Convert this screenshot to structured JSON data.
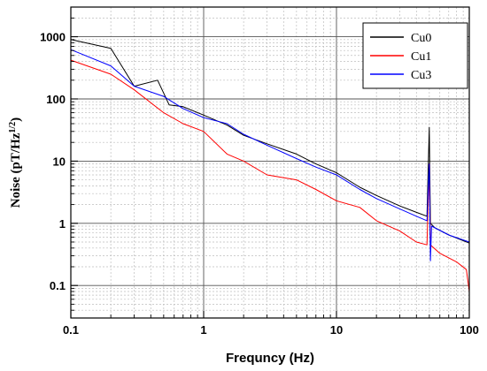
{
  "chart_data": {
    "type": "line",
    "xlabel": "Frequncy (Hz)",
    "ylabel": "Noise (pT/Hz",
    "ylabel_sup": "1/2",
    "ylabel_close": ")",
    "xscale": "log",
    "yscale": "log",
    "xlim": [
      0.1,
      100
    ],
    "ylim": [
      0.03,
      3000
    ],
    "x_ticks": [
      "0.1",
      "1",
      "10",
      "100"
    ],
    "y_ticks": [
      "0.1",
      "1",
      "10",
      "100",
      "1000"
    ],
    "grid": true,
    "legend_position": "top-right",
    "series": [
      {
        "name": "Cu0",
        "color": "#000000",
        "points": [
          [
            0.1,
            900
          ],
          [
            0.2,
            650
          ],
          [
            0.3,
            160
          ],
          [
            0.45,
            200
          ],
          [
            0.55,
            80
          ],
          [
            0.7,
            75
          ],
          [
            1.0,
            55
          ],
          [
            1.5,
            38
          ],
          [
            2.0,
            26
          ],
          [
            3.0,
            19
          ],
          [
            5.0,
            13
          ],
          [
            7.0,
            9
          ],
          [
            10.0,
            6.5
          ],
          [
            15.0,
            3.8
          ],
          [
            20.0,
            2.8
          ],
          [
            30.0,
            1.9
          ],
          [
            40.0,
            1.5
          ],
          [
            48.0,
            1.3
          ],
          [
            50.0,
            35
          ],
          [
            51.0,
            1.0
          ],
          [
            55.0,
            0.85
          ],
          [
            70.0,
            0.65
          ],
          [
            100.0,
            0.48
          ]
        ]
      },
      {
        "name": "Cu1",
        "color": "#ff0000",
        "points": [
          [
            0.1,
            420
          ],
          [
            0.2,
            250
          ],
          [
            0.3,
            140
          ],
          [
            0.5,
            60
          ],
          [
            0.7,
            40
          ],
          [
            1.0,
            30
          ],
          [
            1.5,
            13
          ],
          [
            2.0,
            10
          ],
          [
            3.0,
            6
          ],
          [
            5.0,
            5
          ],
          [
            7.0,
            3.5
          ],
          [
            10.0,
            2.3
          ],
          [
            15.0,
            1.8
          ],
          [
            20.0,
            1.1
          ],
          [
            30.0,
            0.75
          ],
          [
            40.0,
            0.5
          ],
          [
            48.0,
            0.45
          ],
          [
            50.0,
            9
          ],
          [
            51.0,
            0.45
          ],
          [
            60.0,
            0.33
          ],
          [
            80.0,
            0.24
          ],
          [
            95.0,
            0.18
          ],
          [
            100.0,
            0.08
          ]
        ]
      },
      {
        "name": "Cu3",
        "color": "#0000ff",
        "points": [
          [
            0.1,
            620
          ],
          [
            0.2,
            340
          ],
          [
            0.3,
            160
          ],
          [
            0.5,
            110
          ],
          [
            0.7,
            70
          ],
          [
            1.0,
            50
          ],
          [
            1.5,
            40
          ],
          [
            2.0,
            27
          ],
          [
            3.0,
            18
          ],
          [
            5.0,
            11
          ],
          [
            7.0,
            8
          ],
          [
            10.0,
            6
          ],
          [
            15.0,
            3.5
          ],
          [
            20.0,
            2.5
          ],
          [
            30.0,
            1.7
          ],
          [
            40.0,
            1.3
          ],
          [
            48.0,
            1.1
          ],
          [
            50.0,
            9
          ],
          [
            51.0,
            0.25
          ],
          [
            52.0,
            0.9
          ],
          [
            70.0,
            0.65
          ],
          [
            100.0,
            0.5
          ]
        ]
      }
    ]
  }
}
